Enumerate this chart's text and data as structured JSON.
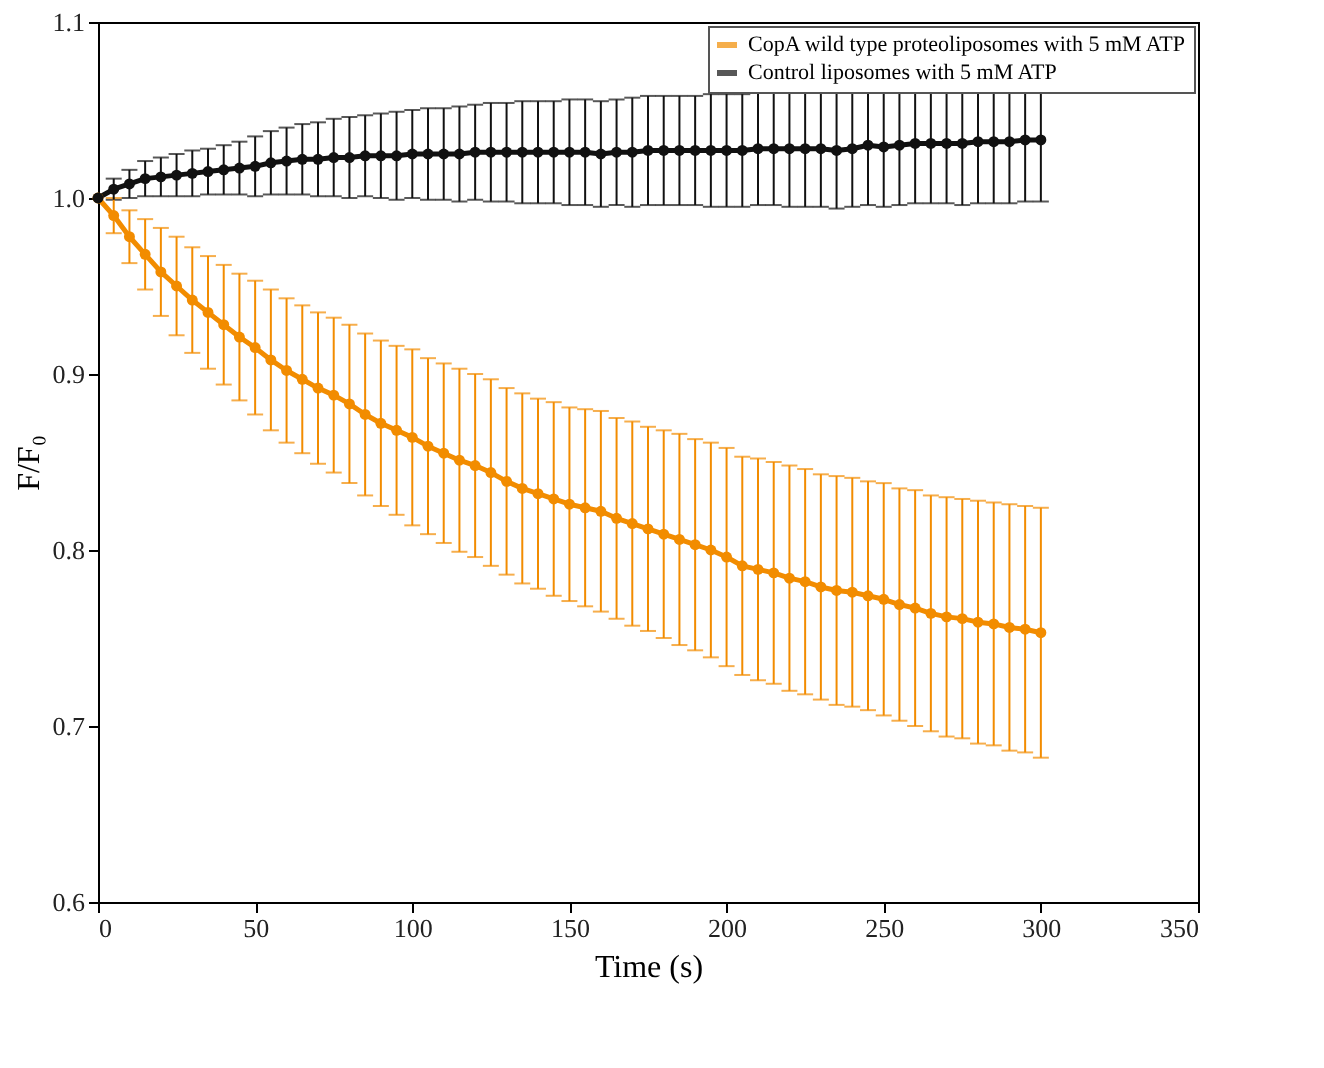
{
  "chart_data": {
    "type": "line",
    "xlabel": "Time (s)",
    "ylabel": "F/F₀",
    "x": [
      0,
      5,
      10,
      15,
      20,
      25,
      30,
      35,
      40,
      45,
      50,
      55,
      60,
      65,
      70,
      75,
      80,
      85,
      90,
      95,
      100,
      105,
      110,
      115,
      120,
      125,
      130,
      135,
      140,
      145,
      150,
      155,
      160,
      165,
      170,
      175,
      180,
      185,
      190,
      195,
      200,
      205,
      210,
      215,
      220,
      225,
      230,
      235,
      240,
      245,
      250,
      255,
      260,
      265,
      270,
      275,
      280,
      285,
      290,
      295,
      300
    ],
    "series": [
      {
        "name": "CopA wild type proteoliposomes with 5 mM ATP",
        "color": "#f28c00",
        "values": [
          1.0,
          0.99,
          0.978,
          0.968,
          0.958,
          0.95,
          0.942,
          0.935,
          0.928,
          0.921,
          0.915,
          0.908,
          0.902,
          0.897,
          0.892,
          0.888,
          0.883,
          0.877,
          0.872,
          0.868,
          0.864,
          0.859,
          0.855,
          0.851,
          0.848,
          0.844,
          0.839,
          0.835,
          0.832,
          0.829,
          0.826,
          0.824,
          0.822,
          0.818,
          0.815,
          0.812,
          0.809,
          0.806,
          0.803,
          0.8,
          0.796,
          0.791,
          0.789,
          0.787,
          0.784,
          0.782,
          0.779,
          0.777,
          0.776,
          0.774,
          0.772,
          0.769,
          0.767,
          0.764,
          0.762,
          0.761,
          0.759,
          0.758,
          0.756,
          0.755,
          0.753
        ],
        "errors": [
          null,
          0.01,
          0.015,
          0.02,
          0.025,
          0.028,
          0.03,
          0.032,
          0.034,
          0.036,
          0.038,
          0.04,
          0.041,
          0.042,
          0.043,
          0.044,
          0.045,
          0.046,
          0.047,
          0.048,
          0.05,
          0.05,
          0.051,
          0.052,
          0.052,
          0.053,
          0.053,
          0.054,
          0.054,
          0.055,
          0.055,
          0.056,
          0.057,
          0.057,
          0.058,
          0.058,
          0.059,
          0.06,
          0.06,
          0.061,
          0.062,
          0.062,
          0.063,
          0.063,
          0.064,
          0.064,
          0.064,
          0.065,
          0.065,
          0.065,
          0.066,
          0.066,
          0.067,
          0.067,
          0.068,
          0.068,
          0.069,
          0.069,
          0.07,
          0.07,
          0.071
        ]
      },
      {
        "name": "Control liposomes with 5 mM ATP",
        "color": "#111111",
        "values": [
          1.0,
          1.005,
          1.008,
          1.011,
          1.012,
          1.013,
          1.014,
          1.015,
          1.016,
          1.017,
          1.018,
          1.02,
          1.021,
          1.022,
          1.022,
          1.023,
          1.023,
          1.024,
          1.024,
          1.024,
          1.025,
          1.025,
          1.025,
          1.025,
          1.026,
          1.026,
          1.026,
          1.026,
          1.026,
          1.026,
          1.026,
          1.026,
          1.025,
          1.026,
          1.026,
          1.027,
          1.027,
          1.027,
          1.027,
          1.027,
          1.027,
          1.027,
          1.028,
          1.028,
          1.028,
          1.028,
          1.028,
          1.027,
          1.028,
          1.03,
          1.029,
          1.03,
          1.031,
          1.031,
          1.031,
          1.031,
          1.032,
          1.032,
          1.032,
          1.033,
          1.033
        ],
        "errors": [
          null,
          0.006,
          0.008,
          0.01,
          0.011,
          0.012,
          0.013,
          0.013,
          0.014,
          0.015,
          0.017,
          0.018,
          0.019,
          0.02,
          0.021,
          0.022,
          0.023,
          0.023,
          0.024,
          0.025,
          0.025,
          0.026,
          0.026,
          0.027,
          0.027,
          0.028,
          0.028,
          0.029,
          0.029,
          0.029,
          0.03,
          0.03,
          0.03,
          0.03,
          0.031,
          0.031,
          0.031,
          0.031,
          0.031,
          0.032,
          0.032,
          0.032,
          0.032,
          0.032,
          0.033,
          0.033,
          0.033,
          0.033,
          0.033,
          0.034,
          0.034,
          0.034,
          0.034,
          0.034,
          0.034,
          0.035,
          0.035,
          0.035,
          0.035,
          0.035,
          0.035
        ]
      }
    ],
    "xlim": [
      0,
      350
    ],
    "xticks": [
      0,
      50,
      100,
      150,
      200,
      250,
      300,
      350
    ],
    "ylim": [
      0.6,
      1.1
    ],
    "yticks": [
      0.6,
      0.7,
      0.8,
      0.9,
      {
        "value": 1,
        "label": "1.0"
      },
      1.1
    ],
    "marker": "circle",
    "line_style": "solid",
    "legend": "top right",
    "grid": false
  }
}
